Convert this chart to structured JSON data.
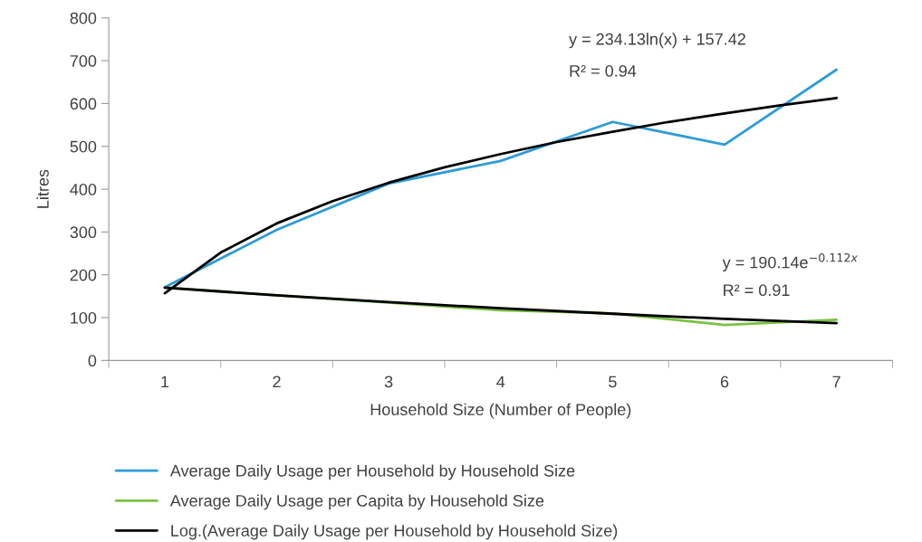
{
  "chart_data": {
    "type": "line",
    "xlabel": "Household Size (Number of People)",
    "ylabel": "Litres",
    "xlim": [
      0.5,
      7.5
    ],
    "xticks": [
      {
        "value": 0.5,
        "label": null
      },
      1,
      {
        "value": 1.5,
        "label": null
      },
      2,
      {
        "value": 2.5,
        "label": null
      },
      3,
      {
        "value": 3.5,
        "label": null
      },
      4,
      {
        "value": 4.5,
        "label": null
      },
      5,
      {
        "value": 5.5,
        "label": null
      },
      6,
      {
        "value": 6.5,
        "label": null
      },
      7,
      {
        "value": 7.5,
        "label": null
      }
    ],
    "ylim": [
      0,
      800
    ],
    "yticks": [
      0,
      100,
      200,
      300,
      400,
      500,
      600,
      700,
      800
    ],
    "grid": false,
    "legend": "bottom",
    "marker": "none",
    "line_style": "solid",
    "series": [
      {
        "name": "Average Daily Usage per Household by Household Size",
        "color": "#2e9bd6",
        "x": [
          1,
          2,
          3,
          4,
          5,
          6,
          7
        ],
        "values": [
          171,
          305,
          413,
          466,
          557,
          504,
          679
        ]
      },
      {
        "name": "Average Daily Usage per Capita by Household Size",
        "color": "#7ac143",
        "x": [
          1,
          2,
          3,
          4,
          5,
          6,
          7
        ],
        "values": [
          170,
          152,
          135,
          117,
          110,
          83,
          95
        ]
      },
      {
        "name": "Log.(Average Daily Usage per Household by Household Size)",
        "color": "#000000",
        "x": [
          1,
          1.5,
          2,
          2.5,
          3,
          3.5,
          4,
          4.5,
          5,
          5.5,
          6,
          6.5,
          7
        ],
        "values": [
          157,
          252,
          320,
          372,
          415,
          451,
          482,
          510,
          534,
          557,
          577,
          596,
          613
        ]
      },
      {
        "color": "#000000",
        "x": [
          1,
          2,
          3,
          4,
          5,
          6,
          7
        ],
        "values": [
          170,
          152,
          136,
          122,
          109,
          97,
          87
        ]
      }
    ],
    "annotations": [
      "y = 234.13ln(x) + 157.42",
      "R² = 0.94",
      "y = 190.14e$^{−0.112x}$",
      "R² = 0.91"
    ]
  }
}
